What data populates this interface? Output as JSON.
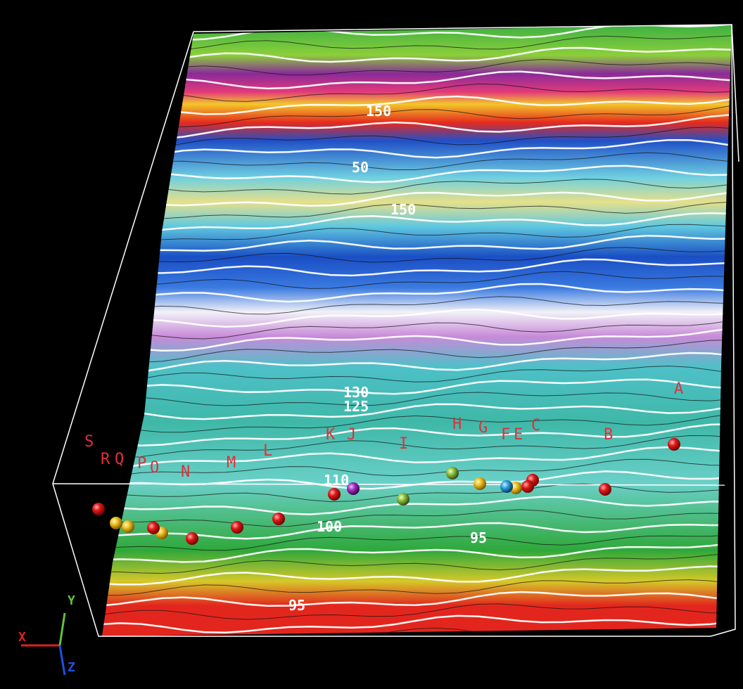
{
  "well_labels": [
    "A",
    "B",
    "C",
    "E",
    "F",
    "G",
    "H",
    "I",
    "J",
    "K",
    "L",
    "M",
    "N",
    "O",
    "P",
    "Q",
    "R",
    "S"
  ],
  "contour_labels": [
    "95",
    "95",
    "100",
    "110",
    "125",
    "130",
    "150",
    "150",
    "50"
  ],
  "axes": {
    "x": "X",
    "y": "Y",
    "z": "Z"
  }
}
